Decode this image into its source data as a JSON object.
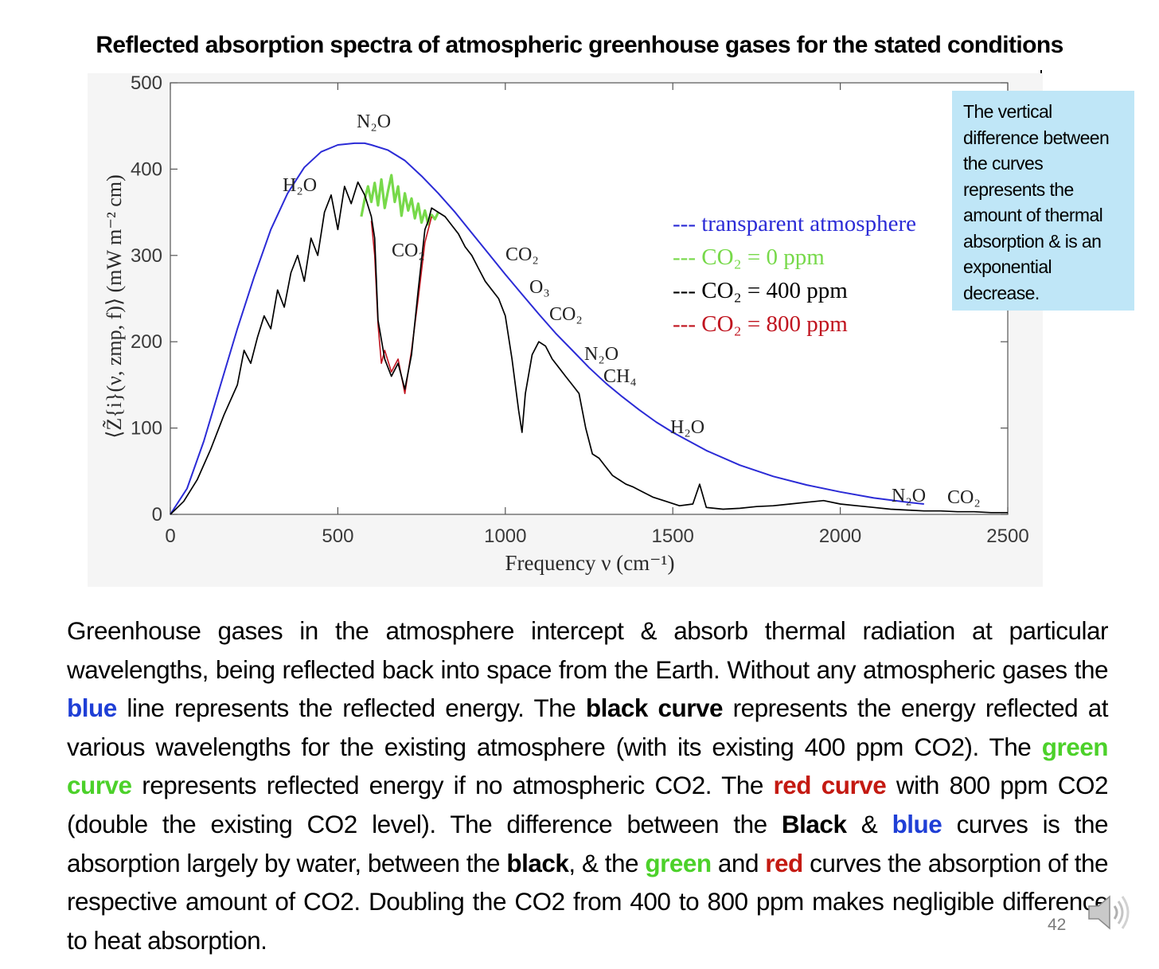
{
  "title": "Reflected absorption spectra of atmospheric greenhouse gases for the stated conditions",
  "note_box": {
    "lines": [
      "The vertical",
      "difference  between",
      "the curves",
      "represents the",
      "amount of thermal",
      "absorption & is an",
      "exponential",
      "decrease."
    ]
  },
  "chart_data": {
    "type": "line",
    "title": "",
    "xlabel": "Frequency ν (cm⁻¹)",
    "ylabel": "⟨Z̃{i}(ν, zmp, f)⟩ (mW m⁻² cm)",
    "xlim": [
      0,
      2500
    ],
    "ylim": [
      0,
      500
    ],
    "x_ticks": [
      0,
      500,
      1000,
      1500,
      2000,
      2500
    ],
    "y_ticks": [
      0,
      100,
      200,
      300,
      400,
      500
    ],
    "grid": false,
    "legend_position": "upper-right inside plot",
    "legend": [
      {
        "text": "--- transparent atmosphere",
        "color": "#2b2bd6"
      },
      {
        "text": "--- CO₂ = 0 ppm",
        "color": "#77d94a"
      },
      {
        "text": "--- CO₂ = 400 ppm",
        "color": "#000000"
      },
      {
        "text": "--- CO₂ = 800 ppm",
        "color": "#c0141f"
      }
    ],
    "series": [
      {
        "name": "transparent atmosphere",
        "color": "#2b2bd6",
        "x": [
          0,
          50,
          100,
          150,
          200,
          250,
          300,
          350,
          400,
          450,
          500,
          550,
          580,
          600,
          650,
          700,
          750,
          800,
          850,
          900,
          950,
          1000,
          1050,
          1100,
          1150,
          1200,
          1250,
          1300,
          1350,
          1400,
          1450,
          1500,
          1600,
          1700,
          1800,
          1900,
          2000,
          2100,
          2200,
          2250
        ],
        "y": [
          0,
          30,
          85,
          150,
          215,
          275,
          330,
          372,
          402,
          420,
          428,
          430,
          430,
          428,
          422,
          410,
          392,
          372,
          350,
          326,
          302,
          278,
          255,
          232,
          210,
          190,
          170,
          152,
          136,
          121,
          107,
          95,
          74,
          57,
          44,
          34,
          26,
          19,
          14,
          12
        ]
      },
      {
        "name": "CO₂ = 0 ppm",
        "color": "#77d94a",
        "x": [
          570,
          580,
          590,
          600,
          610,
          620,
          630,
          640,
          650,
          660,
          670,
          680,
          690,
          700,
          710,
          720,
          730,
          740,
          750,
          760,
          770,
          780,
          790,
          800
        ],
        "y": [
          345,
          365,
          380,
          362,
          384,
          358,
          388,
          355,
          375,
          393,
          362,
          380,
          346,
          372,
          352,
          366,
          343,
          360,
          338,
          352,
          336,
          347,
          342,
          350
        ]
      },
      {
        "name": "CO₂ = 400 ppm",
        "color": "#000000",
        "x": [
          0,
          40,
          80,
          120,
          160,
          200,
          220,
          240,
          260,
          280,
          300,
          320,
          340,
          360,
          380,
          400,
          420,
          440,
          460,
          480,
          500,
          520,
          540,
          560,
          580,
          600,
          610,
          620,
          640,
          660,
          680,
          700,
          720,
          740,
          760,
          770,
          780,
          800,
          820,
          840,
          860,
          880,
          900,
          920,
          940,
          960,
          980,
          1000,
          1020,
          1040,
          1050,
          1060,
          1080,
          1100,
          1120,
          1140,
          1160,
          1180,
          1200,
          1220,
          1240,
          1260,
          1280,
          1300,
          1320,
          1340,
          1360,
          1380,
          1400,
          1440,
          1480,
          1520,
          1560,
          1580,
          1600,
          1650,
          1700,
          1750,
          1800,
          1850,
          1900,
          1950,
          2000,
          2050,
          2100,
          2150,
          2200,
          2250,
          2300,
          2350,
          2400,
          2450,
          2500
        ],
        "y": [
          0,
          15,
          40,
          75,
          115,
          150,
          190,
          175,
          205,
          230,
          215,
          260,
          240,
          280,
          300,
          270,
          320,
          300,
          350,
          370,
          330,
          380,
          360,
          385,
          370,
          345,
          320,
          225,
          180,
          160,
          175,
          145,
          185,
          260,
          330,
          340,
          355,
          350,
          345,
          335,
          325,
          310,
          300,
          285,
          270,
          260,
          250,
          230,
          180,
          120,
          95,
          140,
          185,
          200,
          195,
          180,
          170,
          160,
          150,
          140,
          100,
          70,
          65,
          55,
          45,
          40,
          35,
          32,
          28,
          20,
          15,
          10,
          12,
          35,
          8,
          6,
          7,
          9,
          10,
          12,
          14,
          16,
          12,
          10,
          8,
          6,
          5,
          4,
          4,
          3,
          3,
          2,
          2
        ]
      },
      {
        "name": "CO₂ = 800 ppm",
        "color": "#c0141f",
        "x": [
          600,
          610,
          620,
          630,
          640,
          660,
          680,
          700,
          720,
          740,
          760,
          780
        ],
        "y": [
          340,
          300,
          220,
          175,
          190,
          165,
          180,
          140,
          190,
          250,
          315,
          345
        ]
      }
    ],
    "annotations": [
      "N₂O",
      "H₂O",
      "CO₂",
      "CO₂",
      "O₃",
      "CO₂",
      "N₂O",
      "CH₄",
      "H₂O",
      "N₂O",
      "CO₂"
    ]
  },
  "body": {
    "t1": "Greenhouse gases in the atmosphere intercept & absorb thermal radiation at particular wavelengths,  being reflected back into space from the Earth.  Without any atmospheric gases the ",
    "blue1": "blue",
    "t2": " line represents the reflected energy.  The ",
    "black1": "black curve",
    "t3": " represents the energy reflected at various wavelengths for the existing atmosphere (with its existing 400 ppm CO2). The ",
    "green1": "green curve",
    "t4": " represents reflected energy if no atmospheric CO2. The ",
    "red1": "red curve",
    "t5": " with 800 ppm CO2 (double the existing CO2 level). The difference between the ",
    "black2": "Black",
    "t6": " & ",
    "blue2": "blue",
    "t7": " curves is the absorption largely by water, between the ",
    "black3": "black",
    "t8": ",  & the ",
    "green2": "green",
    "t9": " and ",
    "red2": "red",
    "t10": " curves the absorption of the respective amount of CO2.  Doubling the CO2 from 400 to 800 ppm makes negligible difference to heat absorption."
  },
  "page_number": "42",
  "speaker_icon": "speaker-icon"
}
